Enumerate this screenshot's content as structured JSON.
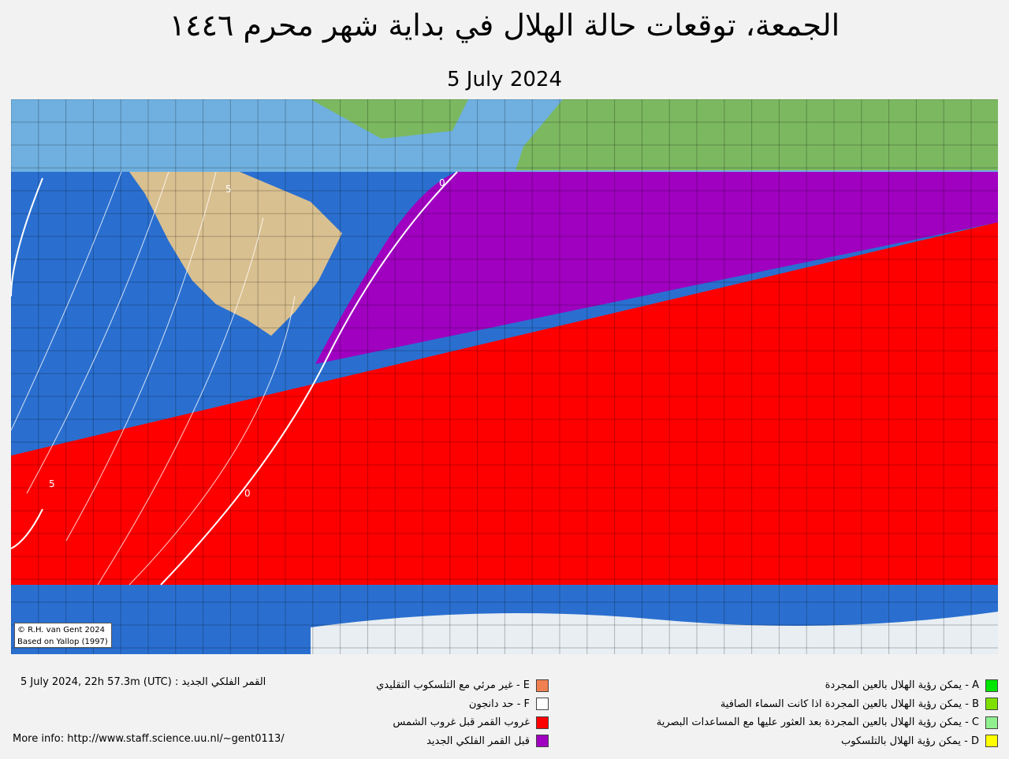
{
  "title": "الجمعة، توقعات حالة الهلال في بداية شهر محرم ١٤٤٦",
  "subtitle": "5 July 2024",
  "map": {
    "credit": [
      "© R.H. van Gent 2024",
      "Based on Yallop (1997)"
    ],
    "contour_labels": [
      "0",
      "5",
      "5",
      "0"
    ]
  },
  "footer": {
    "new_moon": "5 July 2024, 22h 57.3m (UTC) : القمر الفلكي الجديد",
    "more_info": "More info: http://www.staff.science.uu.nl/~gent0113/"
  },
  "legend_right": [
    {
      "label": "A - يمكن رؤية الهلال بالعين المجردة",
      "color": "#00e600"
    },
    {
      "label": "B - يمكن رؤية الهلال بالعين المجردة اذا كانت السماء الصافية",
      "color": "#7fe000"
    },
    {
      "label": "C - يمكن رؤية الهلال بالعين المجردة بعد العثور عليها مع المساعدات البصرية",
      "color": "#90f090"
    },
    {
      "label": "D - يمكن رؤية الهلال بالتلسكوب",
      "color": "#ffff00"
    }
  ],
  "legend_middle": [
    {
      "label": "E - غير مرئي مع التلسكوب التقليدي",
      "color": "#f08050"
    },
    {
      "label": "F - حد دانجون",
      "color": "#ffffff"
    },
    {
      "label": "غروب القمر قبل غروب الشمس",
      "color": "#ff0000"
    },
    {
      "label": "قبل القمر  الفلكي الجديد",
      "color": "#a000c0"
    }
  ]
}
